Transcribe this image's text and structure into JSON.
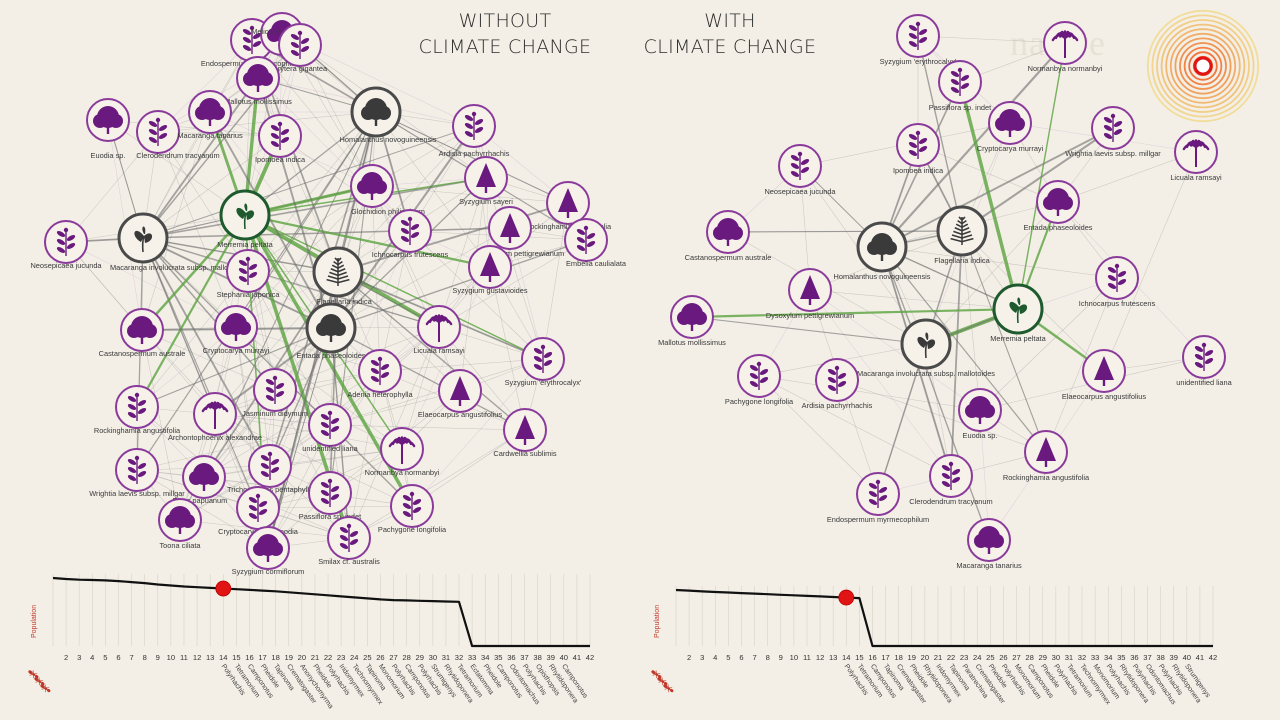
{
  "titles": {
    "left_line1": "WITHOUT",
    "left_line2": "CLIMATE CHANGE",
    "right_line1": "WITH",
    "right_line2": "CLIMATE CHANGE"
  },
  "watermark": "nature",
  "colors": {
    "background": "#f3efe6",
    "plant_purple": "#6a1a7e",
    "ring_purple": "#8a3a9a",
    "current_ring": "#4a4a4a",
    "green_node": "#1e5a2e",
    "green_edge": "#5aa33e",
    "gray_edge": "#9a9a9a",
    "marker_red": "#e01414",
    "target_orange": "#f0a030"
  },
  "networks": [
    {
      "id": "without",
      "nodes": [
        {
          "label": "Endospermum myrmecophilum",
          "shape": "shrub"
        },
        {
          "label": "Melicope elleryana",
          "shape": "round"
        },
        {
          "label": "Arytera gigantea",
          "shape": "shrub"
        },
        {
          "label": "Mallotus mollissimus",
          "shape": "round"
        },
        {
          "label": "Euodia sp.",
          "shape": "round"
        },
        {
          "label": "Clerodendrum tracyanum",
          "shape": "shrub"
        },
        {
          "label": "Macaranga tanarius",
          "shape": "round"
        },
        {
          "label": "Ipomoea indica",
          "shape": "shrub"
        },
        {
          "label": "Homalanthus novoguineensis",
          "shape": "round",
          "current": true
        },
        {
          "label": "Ardisia pachyrrhachis",
          "shape": "shrub"
        },
        {
          "label": "Neosepicaea jucunda",
          "shape": "shrub"
        },
        {
          "label": "Macaranga involucrata subsp. mallotoides",
          "shape": "leaf",
          "current": true
        },
        {
          "label": "Merremia peltata",
          "shape": "leaf",
          "green": true
        },
        {
          "label": "Glochidion philippicum",
          "shape": "round"
        },
        {
          "label": "Syzygium sayeri",
          "shape": "conifer"
        },
        {
          "label": "Rockinghamia angustifolia",
          "shape": "conifer"
        },
        {
          "label": "Embelia caulialata",
          "shape": "shrub"
        },
        {
          "label": "Ichnocarpus frutescens",
          "shape": "shrub"
        },
        {
          "label": "Dysoxylum pettigrewianum",
          "shape": "conifer"
        },
        {
          "label": "Flagellaria indica",
          "shape": "fern",
          "current": true
        },
        {
          "label": "Stephania japonica",
          "shape": "shrub"
        },
        {
          "label": "Syzygium gustavioides",
          "shape": "conifer"
        },
        {
          "label": "Castanospermum australe",
          "shape": "round"
        },
        {
          "label": "Cryptocarya murrayi",
          "shape": "round"
        },
        {
          "label": "Entada phaseoloides",
          "shape": "round",
          "current": true
        },
        {
          "label": "Licuala ramsayi",
          "shape": "palm"
        },
        {
          "label": "Syzygium 'erythrocalyx'",
          "shape": "shrub"
        },
        {
          "label": "Adenia heterophylla",
          "shape": "shrub"
        },
        {
          "label": "Jasminum didymum",
          "shape": "shrub"
        },
        {
          "label": "Elaeocarpus angustifolius",
          "shape": "conifer"
        },
        {
          "label": "Rockinghamia angustifolia",
          "shape": "shrub"
        },
        {
          "label": "Archontophoenix alexandrae",
          "shape": "palm"
        },
        {
          "label": "unidentified liana",
          "shape": "shrub"
        },
        {
          "label": "Cardwellia sublimis",
          "shape": "conifer"
        },
        {
          "label": "Normanbya normanbyi",
          "shape": "palm"
        },
        {
          "label": "Wrightia laevis subsp. millgar",
          "shape": "shrub"
        },
        {
          "label": "Trichosanthes pentaphylla",
          "shape": "shrub"
        },
        {
          "label": "Ficus papuanum",
          "shape": "round"
        },
        {
          "label": "Toona ciliata",
          "shape": "round"
        },
        {
          "label": "Cryptocarya hypospodia",
          "shape": "shrub"
        },
        {
          "label": "Passiflora sp. indet",
          "shape": "shrub"
        },
        {
          "label": "Pachygone longifolia",
          "shape": "shrub"
        },
        {
          "label": "Smilax cf. australis",
          "shape": "shrub"
        },
        {
          "label": "Syzygium cormiflorum",
          "shape": "round"
        }
      ]
    },
    {
      "id": "with",
      "nodes": [
        {
          "label": "Syzygium 'erythrocalyx'",
          "shape": "shrub"
        },
        {
          "label": "Normanbya normanbyi",
          "shape": "palm"
        },
        {
          "label": "Passiflora sp. indet",
          "shape": "shrub"
        },
        {
          "label": "Cryptocarya murrayi",
          "shape": "round"
        },
        {
          "label": "Wrightia laevis subsp. millgar",
          "shape": "shrub"
        },
        {
          "label": "Licuala ramsayi",
          "shape": "palm"
        },
        {
          "label": "Neosepicaea jucunda",
          "shape": "shrub"
        },
        {
          "label": "Ipomoea indica",
          "shape": "shrub"
        },
        {
          "label": "Entada phaseoloides",
          "shape": "round"
        },
        {
          "label": "Castanospermum australe",
          "shape": "round"
        },
        {
          "label": "Flagellaria indica",
          "shape": "fern",
          "current": true
        },
        {
          "label": "Homalanthus novoguineensis",
          "shape": "round",
          "current": true
        },
        {
          "label": "Ichnocarpus frutescens",
          "shape": "shrub"
        },
        {
          "label": "Dysoxylum pettigrewianum",
          "shape": "conifer"
        },
        {
          "label": "Merremia peltata",
          "shape": "leaf",
          "green": true
        },
        {
          "label": "Mallotus mollissimus",
          "shape": "round"
        },
        {
          "label": "Macaranga involucrata subsp. mallotoides",
          "shape": "leaf",
          "current": true
        },
        {
          "label": "unidentified liana",
          "shape": "shrub"
        },
        {
          "label": "Pachygone longifolia",
          "shape": "shrub"
        },
        {
          "label": "Ardisia pachyrrhachis",
          "shape": "shrub"
        },
        {
          "label": "Elaeocarpus angustifolius",
          "shape": "conifer"
        },
        {
          "label": "Euodia sp.",
          "shape": "round"
        },
        {
          "label": "Rockinghamia angustifolia",
          "shape": "conifer"
        },
        {
          "label": "Clerodendrum tracyanum",
          "shape": "shrub"
        },
        {
          "label": "Endospermum myrmecophilum",
          "shape": "shrub"
        },
        {
          "label": "Macaranga tanarius",
          "shape": "round"
        }
      ]
    }
  ],
  "population_charts": [
    {
      "id": "without",
      "ylabel": "Population",
      "x": [
        1,
        2,
        3,
        4,
        5,
        6,
        7,
        8,
        9,
        10,
        11,
        12,
        13,
        14,
        15,
        16,
        17,
        18,
        19,
        20,
        21,
        22,
        23,
        24,
        25,
        26,
        27,
        28,
        29,
        30,
        31,
        32,
        33,
        34,
        35,
        36,
        37,
        38,
        39,
        40,
        41,
        42
      ],
      "tick_labels": [
        "2",
        "3",
        "4",
        "5",
        "6",
        "7",
        "8",
        "9",
        "10",
        "11",
        "12",
        "13",
        "14",
        "15",
        "16",
        "17",
        "18",
        "19",
        "20",
        "21",
        "22",
        "23",
        "24",
        "25",
        "26",
        "27",
        "28",
        "29",
        "30",
        "31",
        "32",
        "33",
        "34",
        "35",
        "36",
        "37",
        "38",
        "39",
        "40",
        "41",
        "42"
      ],
      "values": [
        1.0,
        0.985,
        0.975,
        0.97,
        0.965,
        0.955,
        0.94,
        0.925,
        0.905,
        0.89,
        0.875,
        0.865,
        0.855,
        0.845,
        0.835,
        0.825,
        0.815,
        0.805,
        0.79,
        0.775,
        0.76,
        0.745,
        0.73,
        0.715,
        0.7,
        0.685,
        0.675,
        0.67,
        0.665,
        0.66,
        0.655,
        0.65,
        0,
        0,
        0,
        0,
        0,
        0,
        0,
        0,
        0,
        0
      ],
      "current_step": 14,
      "species_labels": [
        "Polyrhachis",
        "Tetramorium",
        "Camponotus",
        "Pheidole",
        "Tapinoma",
        "Crematogaster",
        "Anonychomyrma",
        "Pheidole",
        "Polyrhachis",
        "Iridomyrmex",
        "Technomyrmex",
        "Tapinoma",
        "Monomorium",
        "Polyrhachis",
        "Camponotus",
        "Polyrhachis",
        "Strumigenys",
        "Rhytidoponera",
        "Tetramorium",
        "Ectatomma",
        "Pheidole",
        "Camponotus",
        "Odontomachus",
        "Polyrhachis",
        "Opisthopsis",
        "Rhytidoponera",
        "Camponotus"
      ]
    },
    {
      "id": "with",
      "ylabel": "Population",
      "x": [
        1,
        2,
        3,
        4,
        5,
        6,
        7,
        8,
        9,
        10,
        11,
        12,
        13,
        14,
        15,
        16,
        17,
        18,
        19,
        20,
        21,
        22,
        23,
        24,
        25,
        26,
        27,
        28,
        29,
        30,
        31,
        32,
        33,
        34,
        35,
        36,
        37,
        38,
        39,
        40,
        41,
        42
      ],
      "tick_labels": [
        "2",
        "3",
        "4",
        "5",
        "6",
        "7",
        "8",
        "9",
        "10",
        "11",
        "12",
        "13",
        "14",
        "15",
        "16",
        "17",
        "18",
        "19",
        "20",
        "21",
        "22",
        "23",
        "24",
        "25",
        "26",
        "27",
        "28",
        "29",
        "30",
        "31",
        "32",
        "33",
        "34",
        "35",
        "36",
        "37",
        "38",
        "39",
        "40",
        "41",
        "42"
      ],
      "values": [
        1.0,
        0.99,
        0.975,
        0.965,
        0.955,
        0.945,
        0.935,
        0.925,
        0.915,
        0.905,
        0.895,
        0.885,
        0.875,
        0.865,
        0.855,
        0,
        0,
        0,
        0,
        0,
        0,
        0,
        0,
        0,
        0,
        0,
        0,
        0,
        0,
        0,
        0,
        0,
        0,
        0,
        0,
        0,
        0,
        0,
        0,
        0,
        0,
        0
      ],
      "current_step": 14,
      "species_labels": [
        "Polyrhachis",
        "Tetramorium",
        "Camponotus",
        "Tapinoma",
        "Crematogaster",
        "Pheidole",
        "Rhytidoponera",
        "Iridomyrmex",
        "Tapinoma",
        "Paratrechina",
        "Crematogaster",
        "Pheidole",
        "Polyrhachis",
        "Monomorium",
        "Camponotus",
        "Pheidole",
        "Polyrhachis",
        "Tetramorium",
        "Technomyrmex",
        "Monomorium",
        "Polyrhachis",
        "Rhytidoponera",
        "Polyrhachis",
        "Odontomachus",
        "Polyrhachis",
        "Rhytidoponera",
        "Strumigenys"
      ]
    }
  ]
}
